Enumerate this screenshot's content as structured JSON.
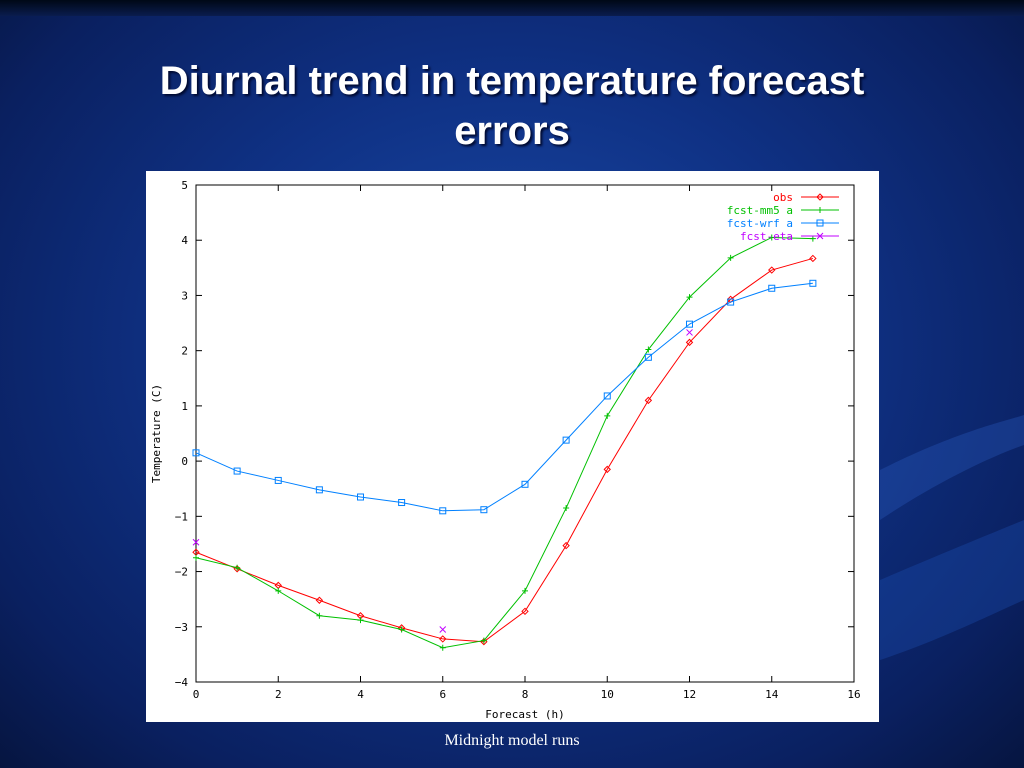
{
  "slide": {
    "title_line1": "Diurnal trend in temperature forecast",
    "title_line2": "errors",
    "caption": "Midnight model runs"
  },
  "chart_data": {
    "type": "line",
    "xlabel": "Forecast (h)",
    "ylabel": "Temperature (C)",
    "xlim": [
      0,
      16
    ],
    "ylim": [
      -4,
      5
    ],
    "xticks": [
      0,
      2,
      4,
      6,
      8,
      10,
      12,
      14,
      16
    ],
    "yticks": [
      -4,
      -3,
      -2,
      -1,
      0,
      1,
      2,
      3,
      4,
      5
    ],
    "grid": false,
    "legend_position": "top-right",
    "series": [
      {
        "name": "obs",
        "color": "#ff0000",
        "marker": "diamond",
        "x": [
          0,
          1,
          2,
          3,
          4,
          5,
          6,
          7,
          8,
          9,
          10,
          11,
          12,
          13,
          14,
          15
        ],
        "y": [
          -1.65,
          -1.95,
          -2.25,
          -2.52,
          -2.8,
          -3.02,
          -3.22,
          -3.27,
          -2.72,
          -1.53,
          -0.15,
          1.1,
          2.15,
          2.93,
          3.46,
          3.67
        ]
      },
      {
        "name": "fcst-mm5 a",
        "color": "#00c000",
        "marker": "plus",
        "x": [
          0,
          1,
          2,
          3,
          4,
          5,
          6,
          7,
          8,
          9,
          10,
          11,
          12,
          13,
          14,
          15
        ],
        "y": [
          -1.75,
          -1.93,
          -2.35,
          -2.8,
          -2.88,
          -3.05,
          -3.38,
          -3.25,
          -2.35,
          -0.85,
          0.82,
          2.02,
          2.97,
          3.68,
          4.05,
          4.03
        ]
      },
      {
        "name": "fcst-wrf a",
        "color": "#0080ff",
        "marker": "square",
        "x": [
          0,
          1,
          2,
          3,
          4,
          5,
          6,
          7,
          8,
          9,
          10,
          11,
          12,
          13,
          14,
          15
        ],
        "y": [
          0.15,
          -0.18,
          -0.35,
          -0.52,
          -0.65,
          -0.75,
          -0.9,
          -0.88,
          -0.42,
          0.38,
          1.18,
          1.88,
          2.48,
          2.88,
          3.13,
          3.22
        ]
      },
      {
        "name": "fcst-eta",
        "color": "#c000ff",
        "marker": "cross",
        "x": [
          0,
          6,
          12
        ],
        "y": [
          -1.47,
          -3.05,
          2.33
        ]
      }
    ]
  }
}
